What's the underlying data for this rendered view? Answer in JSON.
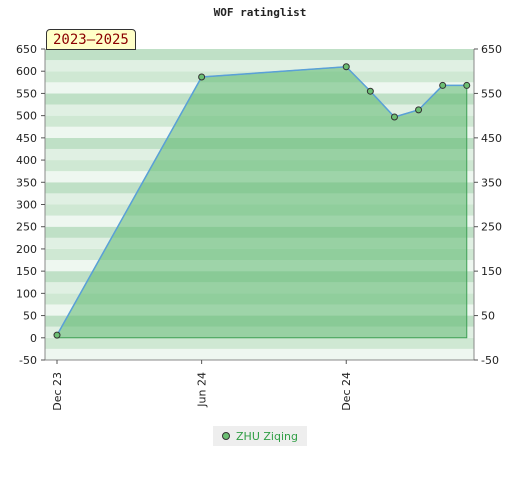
{
  "colors": {
    "fill": "#5cb870",
    "line": "#5aa0d8",
    "marker": "#6cbf73",
    "band_light": "#eef7f0",
    "band_mid": "#cfe8d3",
    "legend_text": "#2f9e44",
    "badge_text": "#8b0000"
  },
  "badge": {
    "label": "2023—2025"
  },
  "legend": {
    "label": "ZHU Ziqing"
  },
  "chart_data": {
    "type": "area",
    "title": "WOF ratinglist",
    "xlabel": "",
    "ylabel": "",
    "ylim": [
      -50,
      650
    ],
    "left_ticks": [
      "650",
      "600",
      "550",
      "500",
      "450",
      "400",
      "350",
      "300",
      "250",
      "200",
      "150",
      "100",
      "50",
      "0",
      "-50"
    ],
    "right_ticks": [
      "650",
      "550",
      "450",
      "350",
      "250",
      "150",
      "50",
      "-50"
    ],
    "x_tick_labels": [
      "Dec 23",
      "Jun 24",
      "Dec 24"
    ],
    "x_tick_index": [
      0,
      6,
      12
    ],
    "x_range": [
      0,
      17.3
    ],
    "grid": true,
    "legend_position": "bottom-center",
    "series": [
      {
        "name": "ZHU Ziqing",
        "x": [
          0,
          6,
          12,
          13,
          14,
          15,
          16,
          17
        ],
        "values": [
          6,
          587,
          610,
          555,
          497,
          513,
          568,
          568
        ]
      }
    ]
  }
}
